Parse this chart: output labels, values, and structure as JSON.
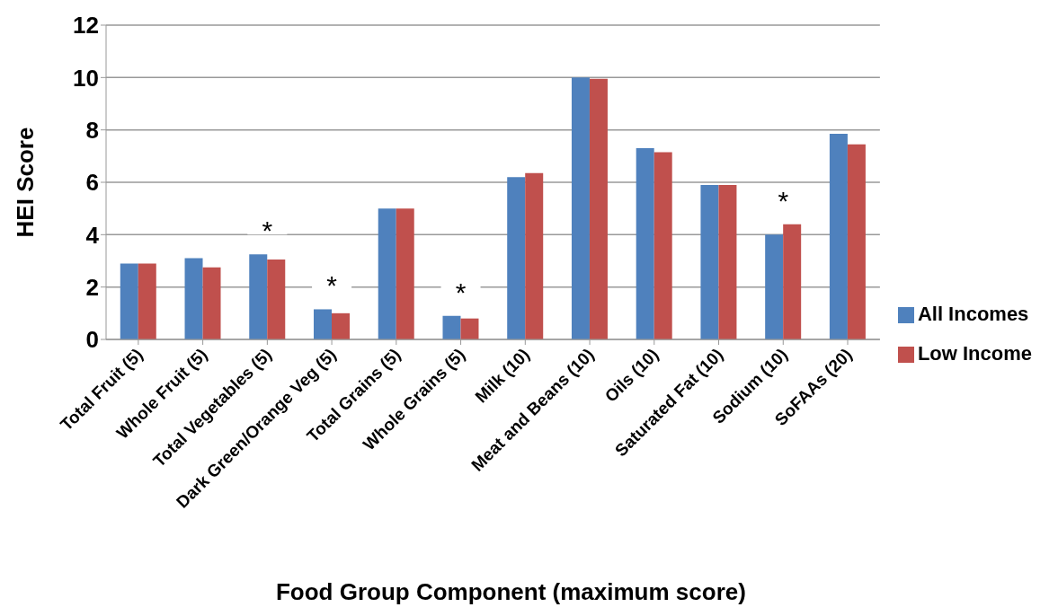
{
  "chart_data": {
    "type": "bar",
    "xlabel": "Food Group Component (maximum score)",
    "ylabel": "HEI Score",
    "categories": [
      "Total Fruit (5)",
      "Whole Fruit (5)",
      "Total Vegetables (5)",
      "Dark Green/Orange Veg (5)",
      "Total Grains (5)",
      "Whole Grains (5)",
      "Milk (10)",
      "Meat and Beans (10)",
      "Oils (10)",
      "Saturated Fat (10)",
      "Sodium (10)",
      "SoFAAs (20)"
    ],
    "series": [
      {
        "name": "All Incomes",
        "color": "#4f81bd",
        "values": [
          2.9,
          3.1,
          3.25,
          1.15,
          5.0,
          0.9,
          6.2,
          10.0,
          7.3,
          5.9,
          4.0,
          7.85
        ]
      },
      {
        "name": "Low Income",
        "color": "#c0504d",
        "values": [
          2.9,
          2.75,
          3.05,
          1.0,
          5.0,
          0.8,
          6.35,
          9.95,
          7.15,
          5.9,
          4.4,
          7.45
        ]
      }
    ],
    "ylim": [
      0,
      12
    ],
    "yticks": [
      0,
      2,
      4,
      6,
      8,
      10,
      12
    ],
    "grid": "y",
    "legend": "right",
    "annotations": [
      {
        "text": "*",
        "x": "Total Vegetables (5)",
        "y": 3.25
      },
      {
        "text": "*",
        "x": "Dark Green/Orange Veg (5)",
        "y": 1.15
      },
      {
        "text": "*",
        "x": "Whole Grains (5)",
        "y": 0.9
      },
      {
        "text": "*",
        "x": "Sodium (10)",
        "y": 4.4
      }
    ]
  }
}
